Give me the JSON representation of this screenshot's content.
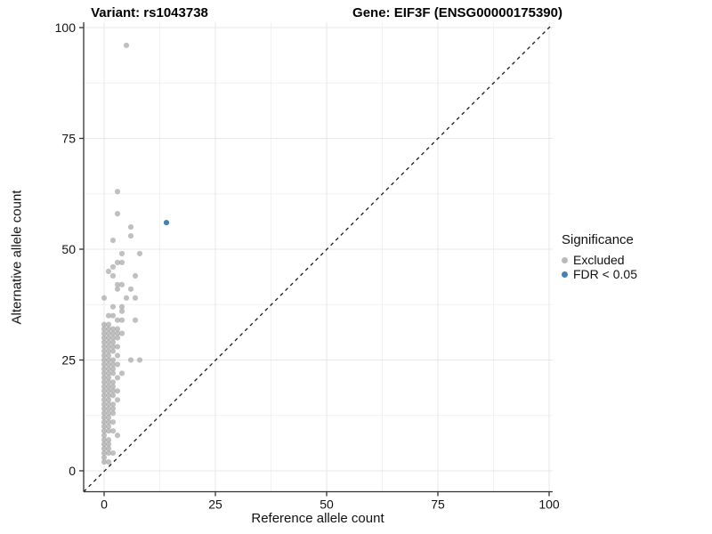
{
  "chart_data": {
    "type": "scatter",
    "title_variant": "Variant: rs1043738",
    "title_gene": "Gene: EIF3F (ENSG00000175390)",
    "xlabel": "Reference allele count",
    "ylabel": "Alternative allele count",
    "xticks": [
      0,
      25,
      50,
      75,
      100
    ],
    "yticks": [
      0,
      25,
      50,
      75,
      100
    ],
    "xlim": [
      -4.6,
      100.8
    ],
    "ylim": [
      -4.7,
      105.4
    ],
    "grid": "major+minor",
    "background": "#ffffff",
    "identity_line": {
      "slope": 1,
      "intercept": 0,
      "style": "dashed",
      "color": "#1a1a1a"
    },
    "legend": {
      "title": "Significance",
      "position": "right",
      "items": [
        {
          "label": "Excluded",
          "color": "#b9b9b9"
        },
        {
          "label": "FDR < 0.05",
          "color": "#4682b4"
        }
      ]
    },
    "series": [
      {
        "name": "Excluded",
        "color": "#a8a8a8",
        "opacity": 0.72,
        "points": [
          [
            5,
            96
          ],
          [
            3,
            63
          ],
          [
            3,
            58
          ],
          [
            6,
            55
          ],
          [
            6,
            53
          ],
          [
            2,
            52
          ],
          [
            4,
            49
          ],
          [
            8,
            49
          ],
          [
            3,
            47
          ],
          [
            4,
            47
          ],
          [
            2,
            46
          ],
          [
            1,
            45
          ],
          [
            2,
            44
          ],
          [
            7,
            44
          ],
          [
            3,
            42
          ],
          [
            4,
            42
          ],
          [
            3,
            41
          ],
          [
            6,
            41
          ],
          [
            0,
            39
          ],
          [
            5,
            39
          ],
          [
            7,
            39
          ],
          [
            2,
            37
          ],
          [
            4,
            37
          ],
          [
            4,
            36
          ],
          [
            1,
            35
          ],
          [
            2,
            35
          ],
          [
            3,
            34
          ],
          [
            4,
            34
          ],
          [
            7,
            34
          ],
          [
            0,
            33
          ],
          [
            1,
            33
          ],
          [
            0,
            32
          ],
          [
            1,
            32
          ],
          [
            2,
            32
          ],
          [
            3,
            32
          ],
          [
            0,
            31
          ],
          [
            1,
            31
          ],
          [
            2,
            31
          ],
          [
            3,
            31
          ],
          [
            4,
            31
          ],
          [
            0,
            30
          ],
          [
            1,
            30
          ],
          [
            2,
            30
          ],
          [
            3,
            30
          ],
          [
            0,
            29
          ],
          [
            1,
            29
          ],
          [
            2,
            29
          ],
          [
            0,
            28
          ],
          [
            1,
            28
          ],
          [
            2,
            28
          ],
          [
            3,
            28
          ],
          [
            0,
            27
          ],
          [
            1,
            27
          ],
          [
            2,
            27
          ],
          [
            0,
            26
          ],
          [
            1,
            26
          ],
          [
            3,
            26
          ],
          [
            0,
            25
          ],
          [
            1,
            25
          ],
          [
            2,
            25
          ],
          [
            6,
            25
          ],
          [
            8,
            25
          ],
          [
            0,
            24
          ],
          [
            1,
            24
          ],
          [
            2,
            24
          ],
          [
            3,
            24
          ],
          [
            0,
            23
          ],
          [
            1,
            23
          ],
          [
            2,
            23
          ],
          [
            0,
            22
          ],
          [
            1,
            22
          ],
          [
            2,
            22
          ],
          [
            4,
            22
          ],
          [
            0,
            21
          ],
          [
            1,
            21
          ],
          [
            3,
            21
          ],
          [
            0,
            20
          ],
          [
            1,
            20
          ],
          [
            2,
            20
          ],
          [
            0,
            19
          ],
          [
            1,
            19
          ],
          [
            2,
            19
          ],
          [
            0,
            18
          ],
          [
            1,
            18
          ],
          [
            2,
            18
          ],
          [
            3,
            18
          ],
          [
            0,
            17
          ],
          [
            1,
            17
          ],
          [
            2,
            17
          ],
          [
            0,
            16
          ],
          [
            1,
            16
          ],
          [
            3,
            16
          ],
          [
            0,
            15
          ],
          [
            1,
            15
          ],
          [
            2,
            15
          ],
          [
            0,
            14
          ],
          [
            1,
            14
          ],
          [
            2,
            14
          ],
          [
            0,
            13
          ],
          [
            1,
            13
          ],
          [
            2,
            13
          ],
          [
            0,
            12
          ],
          [
            1,
            12
          ],
          [
            0,
            11
          ],
          [
            1,
            11
          ],
          [
            2,
            11
          ],
          [
            0,
            10
          ],
          [
            1,
            10
          ],
          [
            0,
            9
          ],
          [
            1,
            9
          ],
          [
            2,
            9
          ],
          [
            0,
            8
          ],
          [
            3,
            8
          ],
          [
            0,
            7
          ],
          [
            1,
            7
          ],
          [
            0,
            6
          ],
          [
            1,
            6
          ],
          [
            0,
            5
          ],
          [
            1,
            5
          ],
          [
            2,
            4
          ],
          [
            0,
            4
          ],
          [
            1,
            4
          ],
          [
            0,
            3
          ],
          [
            0,
            2
          ],
          [
            1,
            2
          ]
        ]
      },
      {
        "name": "FDR < 0.05",
        "color": "#4682b4",
        "opacity": 1,
        "points": [
          [
            14,
            56
          ]
        ]
      }
    ]
  }
}
